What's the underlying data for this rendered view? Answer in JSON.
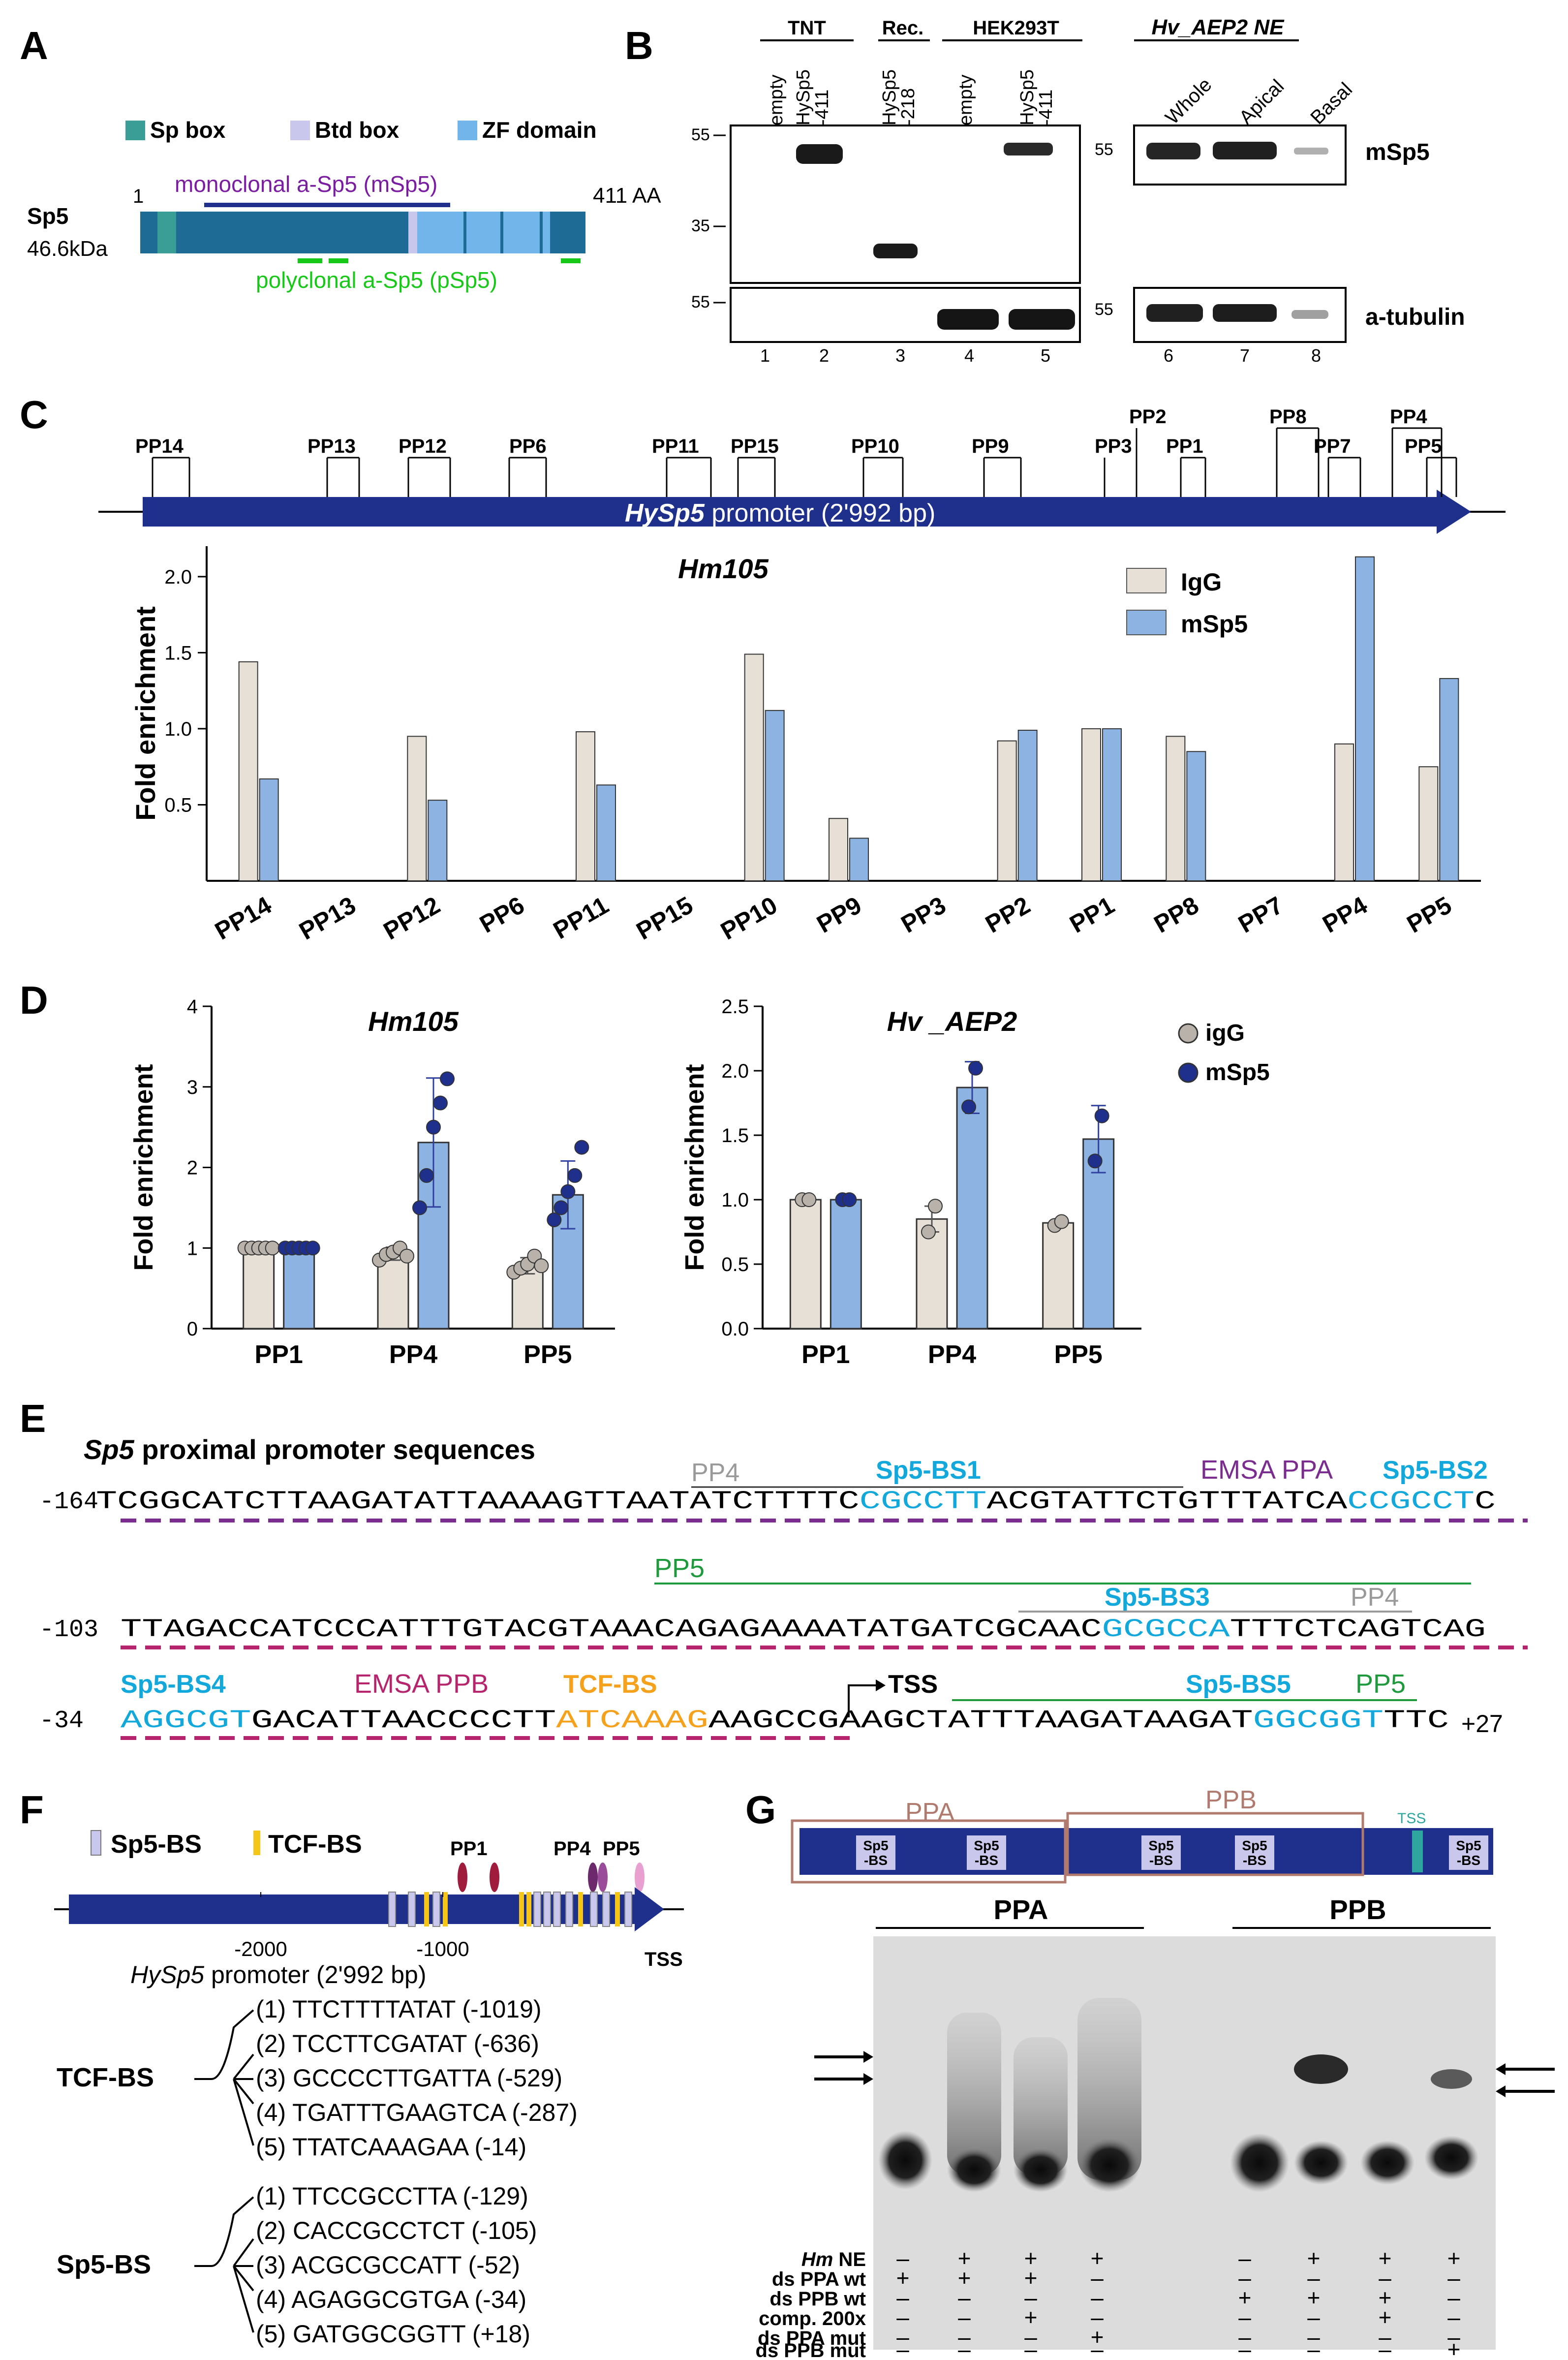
{
  "panels": {
    "A": "A",
    "B": "B",
    "C": "C",
    "D": "D",
    "E": "E",
    "F": "F",
    "G": "G"
  },
  "colors": {
    "navy": "#1e2f8c",
    "teal": "#3a9e97",
    "btd": "#c9c8ec",
    "zf": "#72b5ea",
    "lightblue": "#8cb3e2",
    "beige": "#e6e0d6",
    "cyan": "#12a8dc",
    "purple": "#7a2d8e",
    "magenta": "#b5246c",
    "orange": "#f5a11b",
    "green": "#1e9a3c",
    "grey": "#9a9a9a",
    "brown": "#b07a6e",
    "mSp5_text": "#7a1da0",
    "pSp5_text": "#18c818"
  },
  "panelA": {
    "legend": [
      "Sp box",
      "Btd box",
      "ZF domain"
    ],
    "protein": "Sp5",
    "mass": "46.6kDa",
    "start": "1",
    "end": "411 AA",
    "mab": "monoclonal a-Sp5 (mSp5)",
    "pab": "polyclonal a-Sp5 (pSp5)"
  },
  "panelB": {
    "groups": [
      "TNT",
      "Rec.",
      "HEK293T"
    ],
    "lanes": [
      "empty",
      "HySp5\n-411",
      "HySp5\n-218",
      "empty",
      "HySp5\n-411"
    ],
    "ne_title": "Hv_AEP2 NE",
    "ne_lanes": [
      "Whole",
      "Apical",
      "Basal"
    ],
    "mw_top": [
      "55",
      "35"
    ],
    "mw_bottom": "55",
    "row_labels": [
      "mSp5",
      "a-tubulin"
    ],
    "lane_numbers": [
      "1",
      "2",
      "3",
      "4",
      "5",
      "6",
      "7",
      "8"
    ]
  },
  "panelC": {
    "promoter_label_italic": "HySp5",
    "promoter_label": " promoter (2'992 bp)",
    "tick_labels": [
      "PP14",
      "PP13",
      "PP12",
      "PP6",
      "PP11",
      "PP15",
      "PP10",
      "PP9",
      "PP3",
      "PP2",
      "PP1",
      "PP8",
      "PP7",
      "PP4",
      "PP5"
    ]
  },
  "panelD": {
    "legend": [
      "igG",
      "mSp5"
    ]
  },
  "chart_data": [
    {
      "type": "bar",
      "title": "Hm105",
      "ylabel": "Fold enrichment",
      "xlabel": "",
      "ylim": [
        0,
        2.2
      ],
      "yticks": [
        "0.5",
        "1.0",
        "1.5",
        "2.0"
      ],
      "categories": [
        "PP14",
        "PP13",
        "PP12",
        "PP6",
        "PP11",
        "PP15",
        "PP10",
        "PP9",
        "PP3",
        "PP2",
        "PP1",
        "PP8",
        "PP7",
        "PP4",
        "PP5"
      ],
      "series": [
        {
          "name": "IgG",
          "values": [
            1.44,
            0,
            0.95,
            0,
            0.98,
            0,
            1.49,
            0.41,
            0,
            0.92,
            1.0,
            0.95,
            0,
            0.9,
            0.75
          ]
        },
        {
          "name": "mSp5",
          "values": [
            0.67,
            0,
            0.53,
            0,
            0.63,
            0,
            1.12,
            0.28,
            0,
            0.99,
            1.0,
            0.85,
            0,
            2.13,
            1.33
          ]
        }
      ]
    },
    {
      "type": "bar",
      "title": "Hm105",
      "ylabel": "Fold enrichment",
      "ylim": [
        0,
        4
      ],
      "yticks": [
        "0",
        "1",
        "2",
        "3",
        "4"
      ],
      "categories": [
        "PP1",
        "PP4",
        "PP5"
      ],
      "series": [
        {
          "name": "igG",
          "values": [
            1.0,
            0.93,
            0.78
          ],
          "error": [
            0.02,
            0.08,
            0.1
          ]
        },
        {
          "name": "mSp5",
          "values": [
            1.0,
            2.31,
            1.66
          ],
          "error": [
            0.02,
            0.8,
            0.42
          ]
        }
      ]
    },
    {
      "type": "bar",
      "title": "Hv _AEP2",
      "ylabel": "Fold enrichment",
      "ylim": [
        0,
        2.5
      ],
      "yticks": [
        "0.0",
        "0.5",
        "1.0",
        "1.5",
        "2.0",
        "2.5"
      ],
      "categories": [
        "PP1",
        "PP4",
        "PP5"
      ],
      "series": [
        {
          "name": "igG",
          "values": [
            1.0,
            0.85,
            0.82
          ],
          "error": [
            0.01,
            0.1,
            0.02
          ]
        },
        {
          "name": "mSp5",
          "values": [
            1.0,
            1.87,
            1.47
          ],
          "error": [
            0.01,
            0.2,
            0.26
          ]
        }
      ]
    }
  ],
  "panelE": {
    "title_italic": "Sp5",
    "title": " proximal promoter sequences",
    "lines": [
      {
        "pos": "-164",
        "seq": "TCGGCATCTTAAGATATTAAAAGTTAATATCTTTTCCGCCTTACGTATTCTGTTTATCACCGCCTC"
      },
      {
        "pos": "-103",
        "seq": "TTAGACCATCCCATTTGTACGTAAACAGAGAAAATATGATCGCAACGCGCCATTTCTCAGTCAG"
      },
      {
        "pos": "-34",
        "seq": "AGGCGTGACATTAACCCCTTATCAAAGAAGCCGAAGCTATTTAAGATAAGATGGCGGTTTC"
      }
    ],
    "end_pos": "+27",
    "annotations": {
      "pp4_1": "PP4",
      "bs1": "Sp5-BS1",
      "emsa_a": "EMSA PPA",
      "bs2": "Sp5-BS2",
      "pp5_2": "PP5",
      "bs3": "Sp5-BS3",
      "pp4_2": "PP4",
      "bs4": "Sp5-BS4",
      "emsa_b": "EMSA PPB",
      "tcf": "TCF-BS",
      "tss": "TSS",
      "bs5": "Sp5-BS5",
      "pp5_3": "PP5"
    }
  },
  "panelF": {
    "legend": [
      "Sp5-BS",
      "TCF-BS"
    ],
    "pp_labels": [
      "PP1",
      "PP4",
      "PP5"
    ],
    "axis": [
      "-2000",
      "-1000"
    ],
    "promoter_italic": "HySp5",
    "promoter": " promoter (2'992 bp)",
    "tss": "TSS",
    "tcf_label": "TCF-BS",
    "tcf_sites": [
      "(1) TTCTTTTATAT (-1019)",
      "(2) TCCTTCGATAT (-636)",
      "(3) GCCCCTTGATTA (-529)",
      "(4) TGATTTGAAGTCA (-287)",
      "(5) TTATCAAAGAA (-14)"
    ],
    "sp5_label": "Sp5-BS",
    "sp5_sites": [
      "(1) TTCCGCCTTA (-129)",
      "(2) CACCGCCTCT (-105)",
      "(3) ACGCGCCATT (-52)",
      "(4) AGAGGCGTGA (-34)",
      "(5) GATGGCGGTT (+18)"
    ]
  },
  "panelG": {
    "regions": [
      "PPA",
      "PPB"
    ],
    "tss": "TSS",
    "bs_label": "Sp5\n-BS",
    "gel_groups": [
      "PPA",
      "PPB"
    ],
    "row_labels": [
      "Hm NE",
      "ds PPA wt",
      "ds PPB wt",
      "comp. 200x",
      "ds PPA mut",
      "ds PPB mut"
    ],
    "row_label_italic": "Hm",
    "matrix": [
      [
        "–",
        "+",
        "+",
        "+",
        "–",
        "+",
        "+",
        "+"
      ],
      [
        "+",
        "+",
        "+",
        "–",
        "–",
        "–",
        "–",
        "–"
      ],
      [
        "–",
        "–",
        "–",
        "–",
        "+",
        "+",
        "+",
        "–"
      ],
      [
        "–",
        "–",
        "+",
        "–",
        "–",
        "–",
        "+",
        "–"
      ],
      [
        "–",
        "–",
        "–",
        "+",
        "–",
        "–",
        "–",
        "–"
      ],
      [
        "–",
        "–",
        "–",
        "–",
        "–",
        "–",
        "–",
        "+"
      ]
    ]
  }
}
